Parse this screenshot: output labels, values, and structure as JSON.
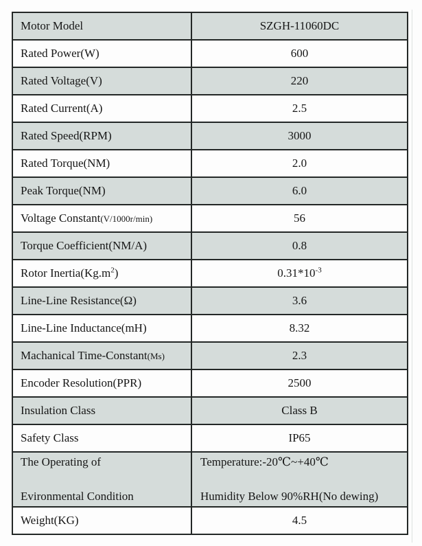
{
  "colors": {
    "shaded_row_bg": "#d5dcda",
    "border": "#232726",
    "text": "#161616"
  },
  "table": {
    "rows": [
      {
        "shaded": true,
        "label": [
          [
            {
              "t": "Motor Model"
            }
          ]
        ],
        "value": [
          [
            {
              "t": "SZGH-11060DC"
            }
          ]
        ]
      },
      {
        "shaded": false,
        "label": [
          [
            {
              "t": "Rated Power(W)"
            }
          ]
        ],
        "value": [
          [
            {
              "t": "600"
            }
          ]
        ]
      },
      {
        "shaded": true,
        "label": [
          [
            {
              "t": "Rated Voltage(V)"
            }
          ]
        ],
        "value": [
          [
            {
              "t": "220"
            }
          ]
        ]
      },
      {
        "shaded": false,
        "label": [
          [
            {
              "t": "Rated Current(A)"
            }
          ]
        ],
        "value": [
          [
            {
              "t": "2.5"
            }
          ]
        ]
      },
      {
        "shaded": true,
        "label": [
          [
            {
              "t": "Rated Speed(RPM)"
            }
          ]
        ],
        "value": [
          [
            {
              "t": "3000"
            }
          ]
        ]
      },
      {
        "shaded": false,
        "label": [
          [
            {
              "t": "Rated Torque(NM)"
            }
          ]
        ],
        "value": [
          [
            {
              "t": "2.0"
            }
          ]
        ]
      },
      {
        "shaded": true,
        "label": [
          [
            {
              "t": "Peak Torque(NM)"
            }
          ]
        ],
        "value": [
          [
            {
              "t": "6.0"
            }
          ]
        ]
      },
      {
        "shaded": false,
        "label": [
          [
            {
              "t": "Voltage Constant"
            },
            {
              "t": "(V/1000r/min)",
              "small": true
            }
          ]
        ],
        "value": [
          [
            {
              "t": "56"
            }
          ]
        ]
      },
      {
        "shaded": true,
        "label": [
          [
            {
              "t": "Torque Coefficient(NM/A)"
            }
          ]
        ],
        "value": [
          [
            {
              "t": "0.8"
            }
          ]
        ]
      },
      {
        "shaded": false,
        "label": [
          [
            {
              "t": "Rotor Inertia(Kg.m"
            },
            {
              "t": "2",
              "sup": true
            },
            {
              "t": ")"
            }
          ]
        ],
        "value": [
          [
            {
              "t": "0.31*10"
            },
            {
              "t": "-3",
              "sup": true
            }
          ]
        ]
      },
      {
        "shaded": true,
        "label": [
          [
            {
              "t": "Line-Line Resistance(Ω)"
            }
          ]
        ],
        "value": [
          [
            {
              "t": "3.6"
            }
          ]
        ]
      },
      {
        "shaded": false,
        "label": [
          [
            {
              "t": "Line-Line Inductance(mH)"
            }
          ]
        ],
        "value": [
          [
            {
              "t": "8.32"
            }
          ]
        ]
      },
      {
        "shaded": true,
        "label": [
          [
            {
              "t": "Machanical Time-Constant"
            },
            {
              "t": "(Ms)",
              "small": true
            }
          ]
        ],
        "value": [
          [
            {
              "t": "2.3"
            }
          ]
        ]
      },
      {
        "shaded": false,
        "label": [
          [
            {
              "t": "Encoder Resolution(PPR)"
            }
          ]
        ],
        "value": [
          [
            {
              "t": "2500"
            }
          ]
        ]
      },
      {
        "shaded": true,
        "label": [
          [
            {
              "t": "Insulation Class"
            }
          ]
        ],
        "value": [
          [
            {
              "t": "Class B"
            }
          ]
        ]
      },
      {
        "shaded": false,
        "label": [
          [
            {
              "t": "Safety Class"
            }
          ]
        ],
        "value": [
          [
            {
              "t": "IP65"
            }
          ]
        ]
      },
      {
        "shaded": true,
        "tall": true,
        "value_align": "left",
        "label": [
          [
            {
              "t": "The Operating of"
            }
          ],
          [
            {
              "t": "Evironmental Condition"
            }
          ]
        ],
        "value": [
          [
            {
              "t": "Temperature:-20℃~+40℃"
            }
          ],
          [
            {
              "t": "Humidity Below 90%RH(No dewing)"
            }
          ]
        ]
      },
      {
        "shaded": false,
        "label": [
          [
            {
              "t": "Weight(KG)"
            }
          ]
        ],
        "value": [
          [
            {
              "t": "4.5"
            }
          ]
        ]
      }
    ]
  }
}
